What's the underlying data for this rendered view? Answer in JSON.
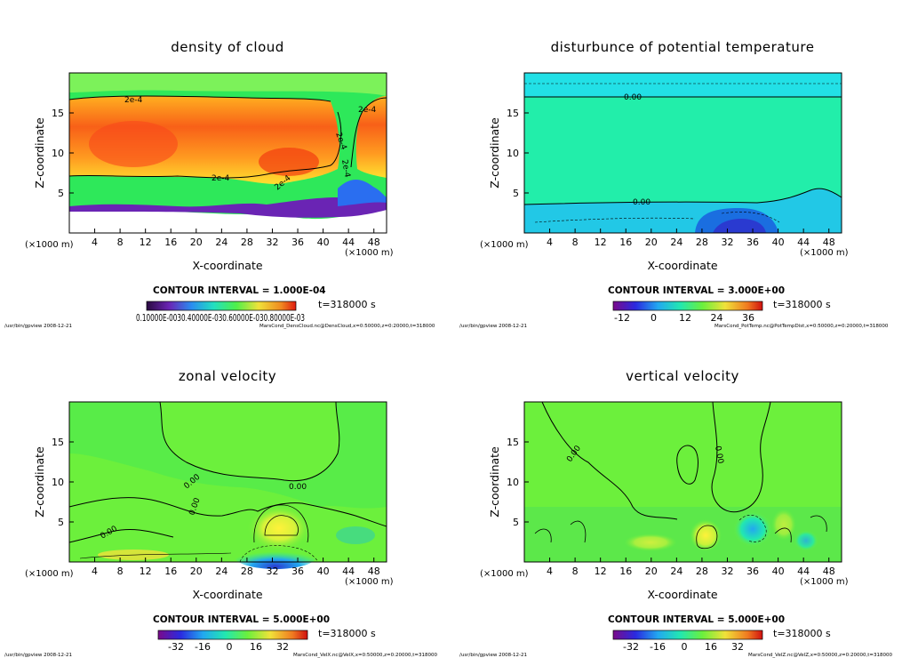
{
  "chart_data": [
    {
      "type": "heatmap",
      "title": "density of cloud",
      "xlabel": "X-coordinate",
      "ylabel": "Z-coordinate",
      "x_unit": "(×1000 m)",
      "xlim": [
        0,
        50
      ],
      "ylim": [
        0,
        20
      ],
      "x_ticks": [
        "4",
        "8",
        "12",
        "16",
        "20",
        "24",
        "28",
        "32",
        "36",
        "40",
        "44",
        "48"
      ],
      "y_ticks": [
        "5",
        "10",
        "15"
      ],
      "contour_labels": [
        "2e-4",
        "2e-4",
        "2e-4",
        "2e-4",
        "2e-4",
        "2e-4"
      ],
      "contour_interval": "CONTOUR INTERVAL = 1.000E-04",
      "time_label": "t=318000 s",
      "colorbar_labels": "0.10000E-0030.40000E-030.60000E-030.80000E-03",
      "colorbar_type": "cloud",
      "footer_left": "/usr/bin/gpview   2008-12-21",
      "footer_right": "MarsCond_DensCloud.nc@DensCloud,x=0:50000,z=0:20000,t=318000"
    },
    {
      "type": "heatmap",
      "title": "disturbunce of potential temperature",
      "xlabel": "X-coordinate",
      "ylabel": "Z-coordinate",
      "x_unit": "(×1000 m)",
      "xlim": [
        0,
        50
      ],
      "ylim": [
        0,
        20
      ],
      "x_ticks": [
        "4",
        "8",
        "12",
        "16",
        "20",
        "24",
        "28",
        "32",
        "36",
        "40",
        "44",
        "48"
      ],
      "y_ticks": [
        "5",
        "10",
        "15"
      ],
      "contour_labels": [
        "0.00",
        "0.00"
      ],
      "contour_interval": "CONTOUR INTERVAL = 3.000E+00",
      "time_label": "t=318000 s",
      "colorbar_labels": [
        "-12",
        "0",
        "12",
        "24",
        "36"
      ],
      "colorbar_type": "rainbow",
      "footer_left": "/usr/bin/gpview   2008-12-21",
      "footer_right": "MarsCond_PotTemp.nc@PotTempDist,x=0:50000,z=0:20000,t=318000"
    },
    {
      "type": "heatmap",
      "title": "zonal velocity",
      "xlabel": "X-coordinate",
      "ylabel": "Z-coordinate",
      "x_unit": "(×1000 m)",
      "xlim": [
        0,
        50
      ],
      "ylim": [
        0,
        20
      ],
      "x_ticks": [
        "4",
        "8",
        "12",
        "16",
        "20",
        "24",
        "28",
        "32",
        "36",
        "40",
        "44",
        "48"
      ],
      "y_ticks": [
        "5",
        "10",
        "15"
      ],
      "contour_labels": [
        "0.00",
        "0.00",
        "0.00",
        "0.00"
      ],
      "contour_interval": "CONTOUR INTERVAL = 5.000E+00",
      "time_label": "t=318000 s",
      "colorbar_labels": [
        "-32",
        "-16",
        "0",
        "16",
        "32"
      ],
      "colorbar_type": "rainbow",
      "footer_left": "/usr/bin/gpview   2008-12-21",
      "footer_right": "MarsCond_VelX.nc@VelX,x=0:50000,z=0:20000,t=318000"
    },
    {
      "type": "heatmap",
      "title": "vertical velocity",
      "xlabel": "X-coordinate",
      "ylabel": "Z-coordinate",
      "x_unit": "(×1000 m)",
      "xlim": [
        0,
        50
      ],
      "ylim": [
        0,
        20
      ],
      "x_ticks": [
        "4",
        "8",
        "12",
        "16",
        "20",
        "24",
        "28",
        "32",
        "36",
        "40",
        "44",
        "48"
      ],
      "y_ticks": [
        "5",
        "10",
        "15"
      ],
      "contour_labels": [
        "0.00",
        "0.00"
      ],
      "contour_interval": "CONTOUR INTERVAL = 5.000E+00",
      "time_label": "t=318000 s",
      "colorbar_labels": [
        "-32",
        "-16",
        "0",
        "16",
        "32"
      ],
      "colorbar_type": "rainbow",
      "footer_left": "/usr/bin/gpview   2008-12-21",
      "footer_right": "MarsCond_VelZ.nc@VelZ,x=0:50000,z=0:20000,t=318000"
    }
  ],
  "colors": {
    "cloud_low": "#2ee85a",
    "cloud_mid": "#ffd02a",
    "cloud_high": "#f23c10",
    "cloud_base": "#6a24b4",
    "ptemp_field": "#22eeaa",
    "ptemp_cold": "#1a6ee0",
    "vel_field": "#6cf03c",
    "vel_pos": "#f0f23a",
    "vel_neg": "#2a8cf0"
  }
}
